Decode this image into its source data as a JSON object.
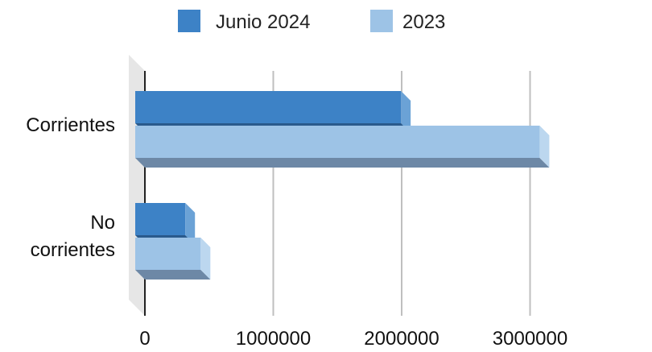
{
  "chart_data": {
    "type": "bar",
    "orientation": "horizontal",
    "style": "3d",
    "categories": [
      [
        "Corrientes"
      ],
      [
        "No",
        "corrientes"
      ]
    ],
    "series": [
      {
        "name": "Junio 2024",
        "values": [
          2070000,
          390000
        ]
      },
      {
        "name": "2023",
        "values": [
          3150000,
          510000
        ]
      }
    ],
    "colors": {
      "series": [
        "#3d82c6",
        "#9dc3e6"
      ],
      "series_side": [
        "#6ba2d6",
        "#bcd7ef"
      ],
      "series_bottom": [
        "#2a5a8c",
        "#6d88a6"
      ],
      "gridline": "#bfbfbf",
      "wall": "#e6e6e6"
    },
    "xlim": [
      0,
      3500000
    ],
    "x_ticks": [
      {
        "value": 0,
        "label": "0"
      },
      {
        "value": 1000000,
        "label": "1000000"
      },
      {
        "value": 2000000,
        "label": "2000000"
      },
      {
        "value": 3000000,
        "label": "3000000"
      }
    ],
    "grid": true,
    "legend_position": "top"
  }
}
